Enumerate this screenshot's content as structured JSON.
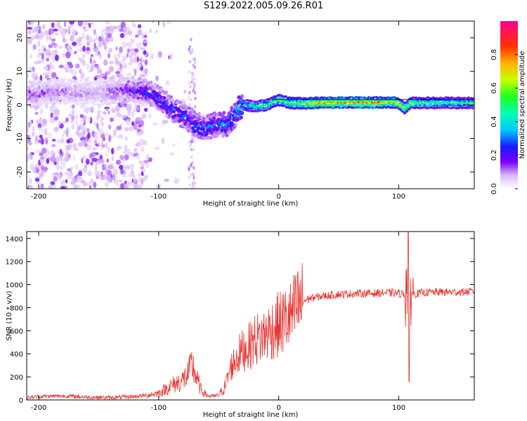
{
  "title": "S129.2022.005.09.26.R01",
  "chart_data": [
    {
      "type": "heatmap",
      "xlabel": "Height of straight line (km)",
      "ylabel": "Frequency (Hz)",
      "xlim": [
        -210,
        163
      ],
      "ylim": [
        -25,
        25
      ],
      "xticks": [
        -200,
        -100,
        0,
        100
      ],
      "yticks": [
        -20,
        -10,
        0,
        10,
        20
      ],
      "colorbar": {
        "label": "Normalized spectral amplitude",
        "range": [
          0,
          1
        ],
        "ticks": [
          "0.0",
          "0.2",
          "0.4",
          "0.6",
          "0.8"
        ]
      },
      "ridge_frequency": {
        "x": [
          -205,
          -180,
          -160,
          -140,
          -125,
          -110,
          -100,
          -90,
          -80,
          -70,
          -60,
          -50,
          -45,
          -40,
          -35,
          -30,
          -20,
          -10,
          0,
          10,
          20,
          40,
          60,
          80,
          95,
          100,
          105,
          110,
          130,
          163
        ],
        "y": [
          3.5,
          4,
          3.5,
          4,
          4.5,
          4,
          2,
          -1,
          -3,
          -5.5,
          -7,
          -5.5,
          -6,
          -5,
          -2,
          0,
          -0.5,
          0,
          1.5,
          0.5,
          0.5,
          0.7,
          0.7,
          0.7,
          0.7,
          0.5,
          -1,
          0.6,
          0.6,
          0.6
        ]
      },
      "peak_amplitude": {
        "x": [
          -205,
          -150,
          -110,
          -80,
          -60,
          -40,
          -20,
          0,
          20,
          40,
          60,
          80,
          100,
          120,
          163
        ],
        "y": [
          0.15,
          0.1,
          0.25,
          0.3,
          0.3,
          0.35,
          0.5,
          0.6,
          0.65,
          0.8,
          0.85,
          0.8,
          0.7,
          0.55,
          0.5
        ]
      }
    },
    {
      "type": "line",
      "xlabel": "Height of straight line (km)",
      "ylabel": "SNR (10 * v/v)",
      "xlim": [
        -210,
        163
      ],
      "ylim": [
        0,
        1460
      ],
      "xticks": [
        -200,
        -100,
        0,
        100
      ],
      "yticks": [
        0,
        200,
        400,
        600,
        800,
        1000,
        1200,
        1400
      ],
      "color": "#e8322e",
      "series": [
        {
          "x": [
            -210,
            -200,
            -180,
            -160,
            -140,
            -120,
            -110,
            -100,
            -90,
            -80,
            -75,
            -72,
            -70,
            -65,
            -60,
            -55,
            -50,
            -45,
            -40,
            -35,
            -30,
            -25,
            -20,
            -15,
            -10,
            -5,
            0,
            5,
            10,
            15,
            20,
            25,
            30,
            40,
            50,
            60,
            70,
            80,
            90,
            100,
            105,
            107,
            108,
            109,
            110,
            112,
            115,
            120,
            130,
            140,
            150,
            163
          ],
          "y": [
            20,
            30,
            35,
            25,
            20,
            30,
            40,
            60,
            120,
            170,
            230,
            300,
            240,
            90,
            40,
            30,
            40,
            110,
            280,
            370,
            430,
            460,
            520,
            540,
            580,
            620,
            650,
            690,
            720,
            800,
            850,
            880,
            890,
            905,
            915,
            920,
            925,
            925,
            930,
            925,
            920,
            1000,
            1300,
            600,
            1000,
            920,
            920,
            930,
            935,
            935,
            935,
            940
          ]
        }
      ]
    }
  ]
}
